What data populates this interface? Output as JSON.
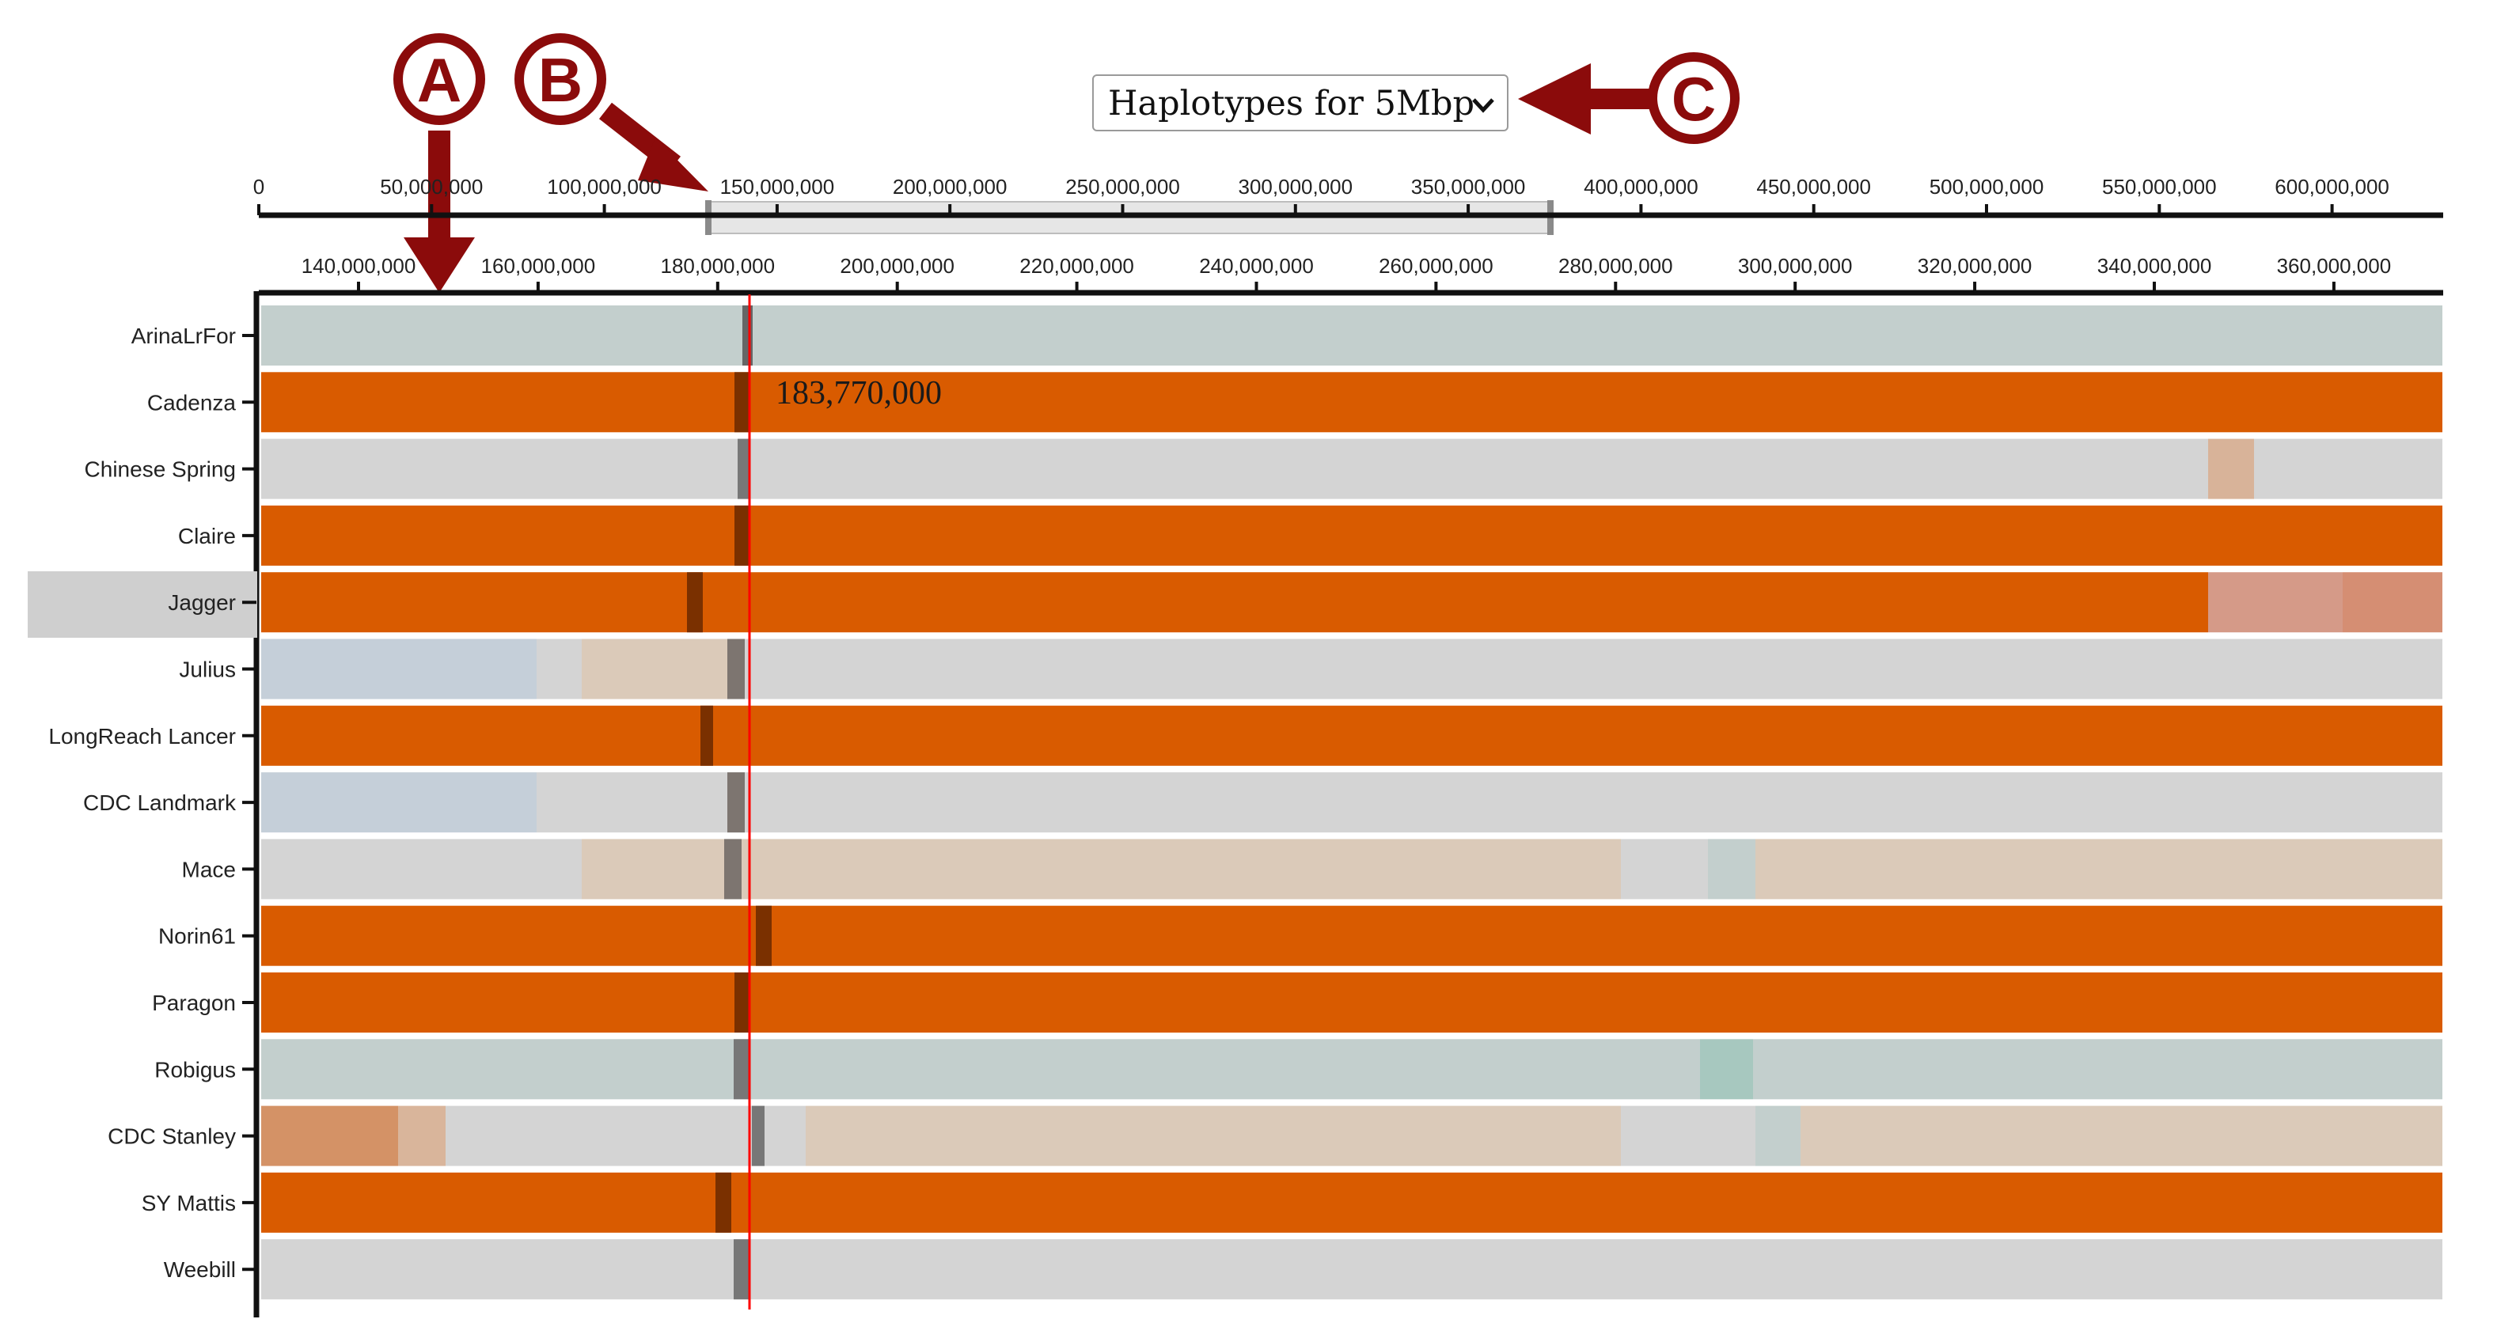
{
  "dropdown": {
    "selected": "Haplotypes for 5Mbp"
  },
  "callouts": [
    "A",
    "B",
    "C"
  ],
  "overview_axis": {
    "ticks": [
      "0",
      "50,000,000",
      "100,000,000",
      "150,000,000",
      "200,000,000",
      "250,000,000",
      "300,000,000",
      "350,000,000",
      "400,000,000",
      "450,000,000",
      "500,000,000",
      "550,000,000",
      "600,000,000"
    ]
  },
  "detail_axis": {
    "ticks": [
      "140,000,000",
      "160,000,000",
      "180,000,000",
      "200,000,000",
      "220,000,000",
      "240,000,000",
      "260,000,000",
      "280,000,000",
      "300,000,000",
      "320,000,000",
      "340,000,000",
      "360,000,000"
    ]
  },
  "cursor": {
    "position_label": "183,770,000"
  },
  "colors": {
    "orange": "#d95b00",
    "grey": "#d4d4d4",
    "slate": "#c3cfcd",
    "tan": "#dbcab9",
    "bluegrey": "#c5cfd9",
    "cursor_line": "#ff0000",
    "callout": "#8b0b0b",
    "row_highlight": "#cfcfcf"
  },
  "genotypes": [
    {
      "name": "ArinaLrFor"
    },
    {
      "name": "Cadenza"
    },
    {
      "name": "Chinese Spring"
    },
    {
      "name": "Claire"
    },
    {
      "name": "Jagger",
      "highlighted": true
    },
    {
      "name": "Julius"
    },
    {
      "name": "LongReach Lancer"
    },
    {
      "name": "CDC Landmark"
    },
    {
      "name": "Mace"
    },
    {
      "name": "Norin61"
    },
    {
      "name": "Paragon"
    },
    {
      "name": "Robigus"
    },
    {
      "name": "CDC Stanley"
    },
    {
      "name": "SY Mattis"
    },
    {
      "name": "Weebill"
    }
  ]
}
